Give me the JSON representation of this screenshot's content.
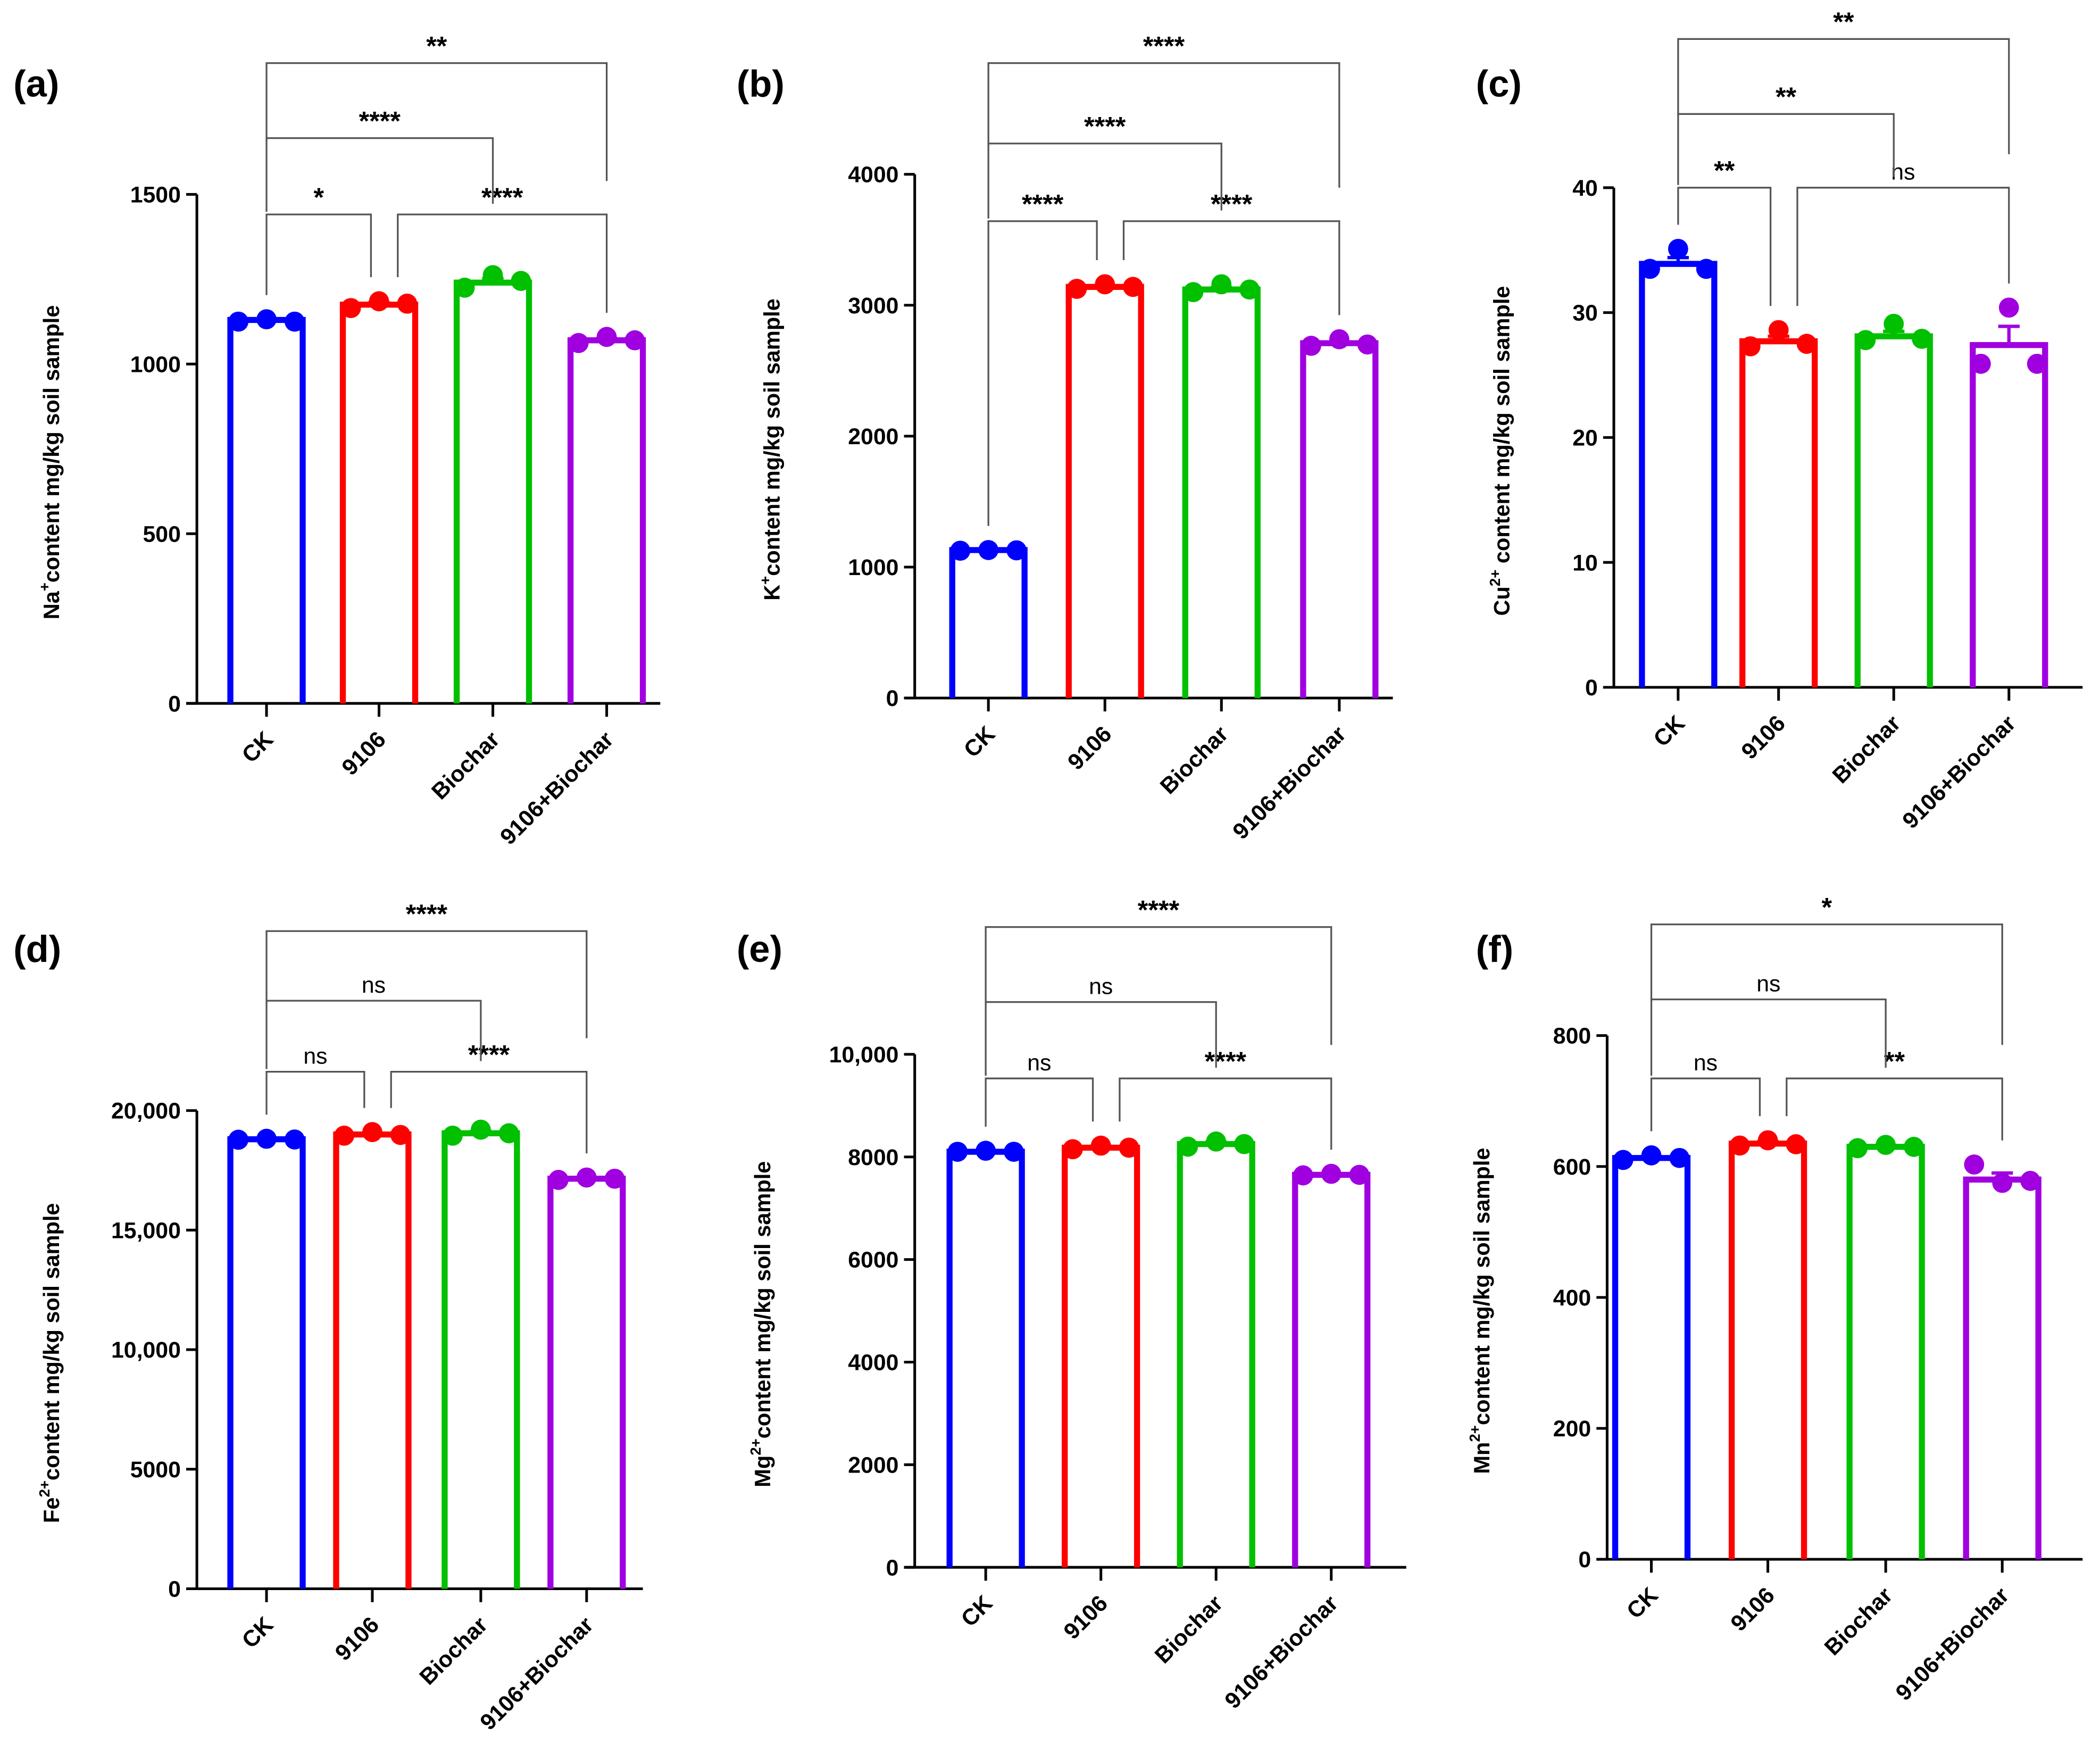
{
  "chart_data": [
    {
      "panel": "(a)",
      "type": "bar",
      "ylabel": {
        "ion": "Na",
        "charge": "+",
        "rest": "content mg/kg soil sample"
      },
      "categories": [
        "CK",
        "9106",
        "Biochar",
        "9106+Biochar"
      ],
      "colors": [
        "#0000FF",
        "#FF0000",
        "#00C000",
        "#A000E0"
      ],
      "ylim": [
        0,
        1500
      ],
      "yticks": [
        0,
        500,
        1000,
        1500
      ],
      "ytick_labels": [
        "0",
        "500",
        "1000",
        "1500"
      ],
      "means": [
        1130,
        1175,
        1240,
        1070
      ],
      "sem": [
        3,
        6,
        12,
        5
      ],
      "points": [
        [
          1125,
          1132,
          1125
        ],
        [
          1165,
          1185,
          1178
        ],
        [
          1225,
          1262,
          1245
        ],
        [
          1062,
          1080,
          1070
        ]
      ],
      "comparisons": [
        {
          "groups": [
            0,
            1
          ],
          "level": 0,
          "label": "*"
        },
        {
          "groups": [
            1,
            3
          ],
          "level": 0,
          "label": "****"
        },
        {
          "groups": [
            0,
            2
          ],
          "level": 1,
          "label": "****"
        },
        {
          "groups": [
            0,
            3
          ],
          "level": 2,
          "label": "**"
        }
      ]
    },
    {
      "panel": "(b)",
      "type": "bar",
      "ylabel": {
        "ion": "K",
        "charge": "+",
        "rest": "content mg/kg soil sample"
      },
      "categories": [
        "CK",
        "9106",
        "Biochar",
        "9106+Biochar"
      ],
      "colors": [
        "#0000FF",
        "#FF0000",
        "#00C000",
        "#A000E0"
      ],
      "ylim": [
        0,
        4000
      ],
      "yticks": [
        0,
        1000,
        2000,
        3000,
        4000
      ],
      "ytick_labels": [
        "0",
        "1000",
        "2000",
        "3000",
        "4000"
      ],
      "means": [
        1130,
        3140,
        3120,
        2710
      ],
      "sem": [
        5,
        10,
        15,
        10
      ],
      "points": [
        [
          1125,
          1130,
          1128
        ],
        [
          3125,
          3160,
          3140
        ],
        [
          3100,
          3160,
          3120
        ],
        [
          2690,
          2740,
          2700
        ]
      ],
      "comparisons": [
        {
          "groups": [
            0,
            1
          ],
          "level": 0,
          "label": "****"
        },
        {
          "groups": [
            1,
            3
          ],
          "level": 0,
          "label": "****"
        },
        {
          "groups": [
            0,
            2
          ],
          "level": 1,
          "label": "****"
        },
        {
          "groups": [
            0,
            3
          ],
          "level": 2,
          "label": "****"
        }
      ]
    },
    {
      "panel": "(c)",
      "type": "bar",
      "ylabel": {
        "ion": "Cu",
        "charge": "2+",
        "rest": " content mg/kg soil sample"
      },
      "categories": [
        "CK",
        "9106",
        "Biochar",
        "9106+Biochar"
      ],
      "colors": [
        "#0000FF",
        "#FF0000",
        "#00C000",
        "#A000E0"
      ],
      "ylim": [
        0,
        40
      ],
      "yticks": [
        0,
        10,
        20,
        30,
        40
      ],
      "ytick_labels": [
        "0",
        "10",
        "20",
        "30",
        "40"
      ],
      "means": [
        33.9,
        27.7,
        28.1,
        27.4
      ],
      "sem": [
        0.5,
        0.4,
        0.4,
        1.5
      ],
      "points": [
        [
          33.5,
          35.1,
          33.5
        ],
        [
          27.3,
          28.6,
          27.5
        ],
        [
          27.8,
          29.1,
          27.9
        ],
        [
          25.9,
          30.4,
          25.9
        ]
      ],
      "comparisons": [
        {
          "groups": [
            0,
            1
          ],
          "level": 0,
          "label": "**"
        },
        {
          "groups": [
            1,
            3
          ],
          "level": 0,
          "label": "ns"
        },
        {
          "groups": [
            0,
            2
          ],
          "level": 1,
          "label": "**"
        },
        {
          "groups": [
            0,
            3
          ],
          "level": 2,
          "label": "**"
        }
      ]
    },
    {
      "panel": "(d)",
      "type": "bar",
      "ylabel": {
        "ion": "Fe",
        "charge": "2+",
        "rest": "content mg/kg soil sample"
      },
      "categories": [
        "CK",
        "9106",
        "Biochar",
        "9106+Biochar"
      ],
      "colors": [
        "#0000FF",
        "#FF0000",
        "#00C000",
        "#A000E0"
      ],
      "ylim": [
        0,
        20000
      ],
      "yticks": [
        0,
        5000,
        10000,
        15000,
        20000
      ],
      "ytick_labels": [
        "0",
        "5000",
        "10,000",
        "15,000",
        "20,000"
      ],
      "means": [
        18800,
        19000,
        19050,
        17150
      ],
      "sem": [
        20,
        60,
        80,
        30
      ],
      "points": [
        [
          18780,
          18820,
          18790
        ],
        [
          18950,
          19100,
          18980
        ],
        [
          18950,
          19200,
          19050
        ],
        [
          17100,
          17200,
          17150
        ]
      ],
      "comparisons": [
        {
          "groups": [
            0,
            1
          ],
          "level": 0,
          "label": "ns"
        },
        {
          "groups": [
            1,
            3
          ],
          "level": 0,
          "label": "****"
        },
        {
          "groups": [
            0,
            2
          ],
          "level": 1,
          "label": "ns"
        },
        {
          "groups": [
            0,
            3
          ],
          "level": 2,
          "label": "****"
        }
      ]
    },
    {
      "panel": "(e)",
      "type": "bar",
      "ylabel": {
        "ion": "Mg",
        "charge": "2+",
        "rest": "content mg/kg soil sample"
      },
      "categories": [
        "CK",
        "9106",
        "Biochar",
        "9106+Biochar"
      ],
      "colors": [
        "#0000FF",
        "#FF0000",
        "#00C000",
        "#A000E0"
      ],
      "ylim": [
        0,
        10000
      ],
      "yticks": [
        0,
        2000,
        4000,
        6000,
        8000,
        10000
      ],
      "ytick_labels": [
        "0",
        "2000",
        "4000",
        "6000",
        "8000",
        "10,000"
      ],
      "means": [
        8100,
        8180,
        8250,
        7650
      ],
      "sem": [
        10,
        30,
        40,
        15
      ],
      "points": [
        [
          8100,
          8120,
          8100
        ],
        [
          8150,
          8220,
          8180
        ],
        [
          8200,
          8300,
          8250
        ],
        [
          7640,
          7670,
          7650
        ]
      ],
      "comparisons": [
        {
          "groups": [
            0,
            1
          ],
          "level": 0,
          "label": "ns"
        },
        {
          "groups": [
            1,
            3
          ],
          "level": 0,
          "label": "****"
        },
        {
          "groups": [
            0,
            2
          ],
          "level": 1,
          "label": "ns"
        },
        {
          "groups": [
            0,
            3
          ],
          "level": 2,
          "label": "****"
        }
      ]
    },
    {
      "panel": "(f)",
      "type": "bar",
      "ylabel": {
        "ion": "Mn",
        "charge": "2+",
        "rest": "content mg/kg soil sample"
      },
      "categories": [
        "CK",
        "9106",
        "Biochar",
        "9106+Biochar"
      ],
      "colors": [
        "#0000FF",
        "#FF0000",
        "#00C000",
        "#A000E0"
      ],
      "ylim": [
        0,
        800
      ],
      "yticks": [
        0,
        200,
        400,
        600,
        800
      ],
      "ytick_labels": [
        "0",
        "200",
        "400",
        "600",
        "800"
      ],
      "means": [
        613,
        635,
        630,
        580
      ],
      "sem": [
        2,
        3,
        2,
        10
      ],
      "points": [
        [
          610,
          617,
          613
        ],
        [
          632,
          640,
          634
        ],
        [
          628,
          633,
          630
        ],
        [
          603,
          575,
          578
        ]
      ],
      "comparisons": [
        {
          "groups": [
            0,
            1
          ],
          "level": 0,
          "label": "ns"
        },
        {
          "groups": [
            1,
            3
          ],
          "level": 0,
          "label": "**"
        },
        {
          "groups": [
            0,
            2
          ],
          "level": 1,
          "label": "ns"
        },
        {
          "groups": [
            0,
            3
          ],
          "level": 2,
          "label": "*"
        }
      ]
    }
  ]
}
